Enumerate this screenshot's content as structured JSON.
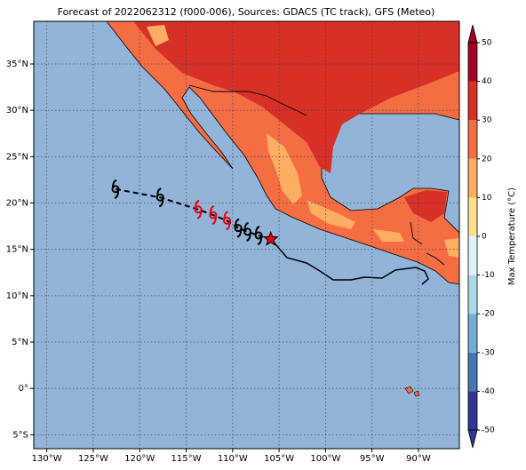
{
  "map": {
    "title": "Forecast of 2022062312 (f000-006), Sources: GDACS (TC track), GFS (Meteo)",
    "xlim": [
      -131.4,
      -85.6
    ],
    "ylim": [
      -6.5,
      39.6
    ],
    "xticks": [
      {
        "value": -130,
        "label": "130°W"
      },
      {
        "value": -125,
        "label": "125°W"
      },
      {
        "value": -120,
        "label": "120°W"
      },
      {
        "value": -115,
        "label": "115°W"
      },
      {
        "value": -110,
        "label": "110°W"
      },
      {
        "value": -105,
        "label": "105°W"
      },
      {
        "value": -100,
        "label": "100°W"
      },
      {
        "value": -95,
        "label": "95°W"
      },
      {
        "value": -90,
        "label": "90°W"
      }
    ],
    "yticks": [
      {
        "value": -5,
        "label": "5°S"
      },
      {
        "value": 0,
        "label": "0°"
      },
      {
        "value": 5,
        "label": "5°N"
      },
      {
        "value": 10,
        "label": "10°N"
      },
      {
        "value": 15,
        "label": "15°N"
      },
      {
        "value": 20,
        "label": "20°N"
      },
      {
        "value": 25,
        "label": "25°N"
      },
      {
        "value": 30,
        "label": "30°N"
      },
      {
        "value": 35,
        "label": "35°N"
      }
    ],
    "grid": true,
    "colorbar": {
      "label": "Max Temperature (°C)",
      "ticks": [
        -50,
        -40,
        -30,
        -20,
        -10,
        0,
        10,
        20,
        30,
        40,
        50
      ],
      "colors": [
        "#313695",
        "#4575b4",
        "#74add1",
        "#abd9e9",
        "#e0f3f8",
        "#fee090",
        "#fdae61",
        "#f46d43",
        "#d73027",
        "#a50026"
      ]
    },
    "track": {
      "lon": [
        -122.6,
        -117.8,
        -113.7,
        -112.1,
        -110.6,
        -109.4,
        -108.4,
        -107.2,
        -105.9
      ],
      "lat": [
        21.5,
        20.6,
        19.3,
        18.7,
        18.1,
        17.3,
        16.9,
        16.5,
        16.1
      ],
      "color": [
        "#000000",
        "#000000",
        "#e8000b",
        "#e8000b",
        "#e8000b",
        "#000000",
        "#000000",
        "#000000",
        "#e8000b"
      ]
    }
  }
}
